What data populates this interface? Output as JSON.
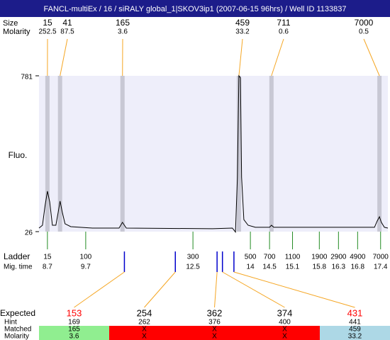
{
  "title": "FANCL-multiEx / 16 / siRALY global_1|SKOV3ip1 (2007-06-15 96hrs) / Well ID 1133837",
  "peak_header": {
    "size": "Size",
    "molarity": "Molarity"
  },
  "chart_data": {
    "type": "line",
    "y_label": "Fluo.",
    "xlim": [
      8.48,
      17.59
    ],
    "ylim": [
      26,
      781
    ],
    "yticks": [
      26,
      781
    ],
    "x": [
      8.48,
      8.57,
      8.64,
      8.7,
      8.76,
      8.83,
      8.92,
      8.98,
      9.03,
      9.09,
      9.16,
      9.31,
      9.87,
      10.57,
      10.66,
      10.76,
      13.01,
      13.53,
      13.61,
      13.66,
      13.7,
      13.74,
      13.77,
      13.83,
      13.94,
      14.13,
      14.5,
      14.55,
      14.61,
      16.72,
      17.24,
      17.31,
      17.37,
      17.42,
      17.5,
      17.59
    ],
    "series": [
      {
        "color": "#000000",
        "values": [
          43,
          57,
          153,
          222,
          170,
          57,
          57,
          119,
          174,
          119,
          64,
          50,
          43,
          43,
          71,
          43,
          40,
          43,
          24,
          290,
          781,
          771,
          290,
          84,
          57,
          47,
          47,
          57,
          47,
          47,
          47,
          77,
          98,
          71,
          47,
          43
        ]
      }
    ],
    "peaks": [
      {
        "size": 15,
        "molarity": 252.5,
        "time": 8.7
      },
      {
        "size": 41,
        "molarity": 87.5,
        "time": 9.03
      },
      {
        "size": 165,
        "molarity": 3.6,
        "time": 10.66
      },
      {
        "size": 459,
        "molarity": 33.2,
        "time": 13.7
      },
      {
        "size": 711,
        "molarity": 0.6,
        "time": 14.55
      },
      {
        "size": 7000,
        "molarity": 0.5,
        "time": 17.37
      }
    ],
    "ladder": {
      "label": "Ladder",
      "time_label": "Mig. time",
      "sizes": [
        15,
        100,
        300,
        500,
        700,
        1100,
        1900,
        2900,
        4900,
        7000
      ],
      "times": [
        8.7,
        9.7,
        12.5,
        14,
        14.5,
        15.1,
        15.8,
        16.3,
        16.8,
        17.4
      ]
    }
  },
  "expected": {
    "headers": {
      "expected": "Expected",
      "hint": "Hint",
      "matched": "Matched",
      "molarity": "Molarity"
    },
    "columns": [
      {
        "expected": 153,
        "hint": 169,
        "matched": 165,
        "molarity": 3.6,
        "marker_time": 10.71,
        "color": "#90ee90",
        "expected_color": "#ff0000"
      },
      {
        "expected": 254,
        "hint": 262,
        "matched": "X",
        "molarity": "X",
        "marker_time": 12.04,
        "color": "#ff0000",
        "expected_color": "#000000"
      },
      {
        "expected": 362,
        "hint": 376,
        "matched": "X",
        "molarity": "X",
        "marker_time": 13.13,
        "color": "#ff0000",
        "expected_color": "#000000"
      },
      {
        "expected": 374,
        "hint": 400,
        "matched": "X",
        "molarity": "X",
        "marker_time": 13.27,
        "color": "#ff0000",
        "expected_color": "#000000"
      },
      {
        "expected": 431,
        "hint": 441,
        "matched": 459,
        "molarity": 33.2,
        "marker_time": 13.57,
        "color": "#add8e6",
        "expected_color": "#ff0000"
      }
    ]
  }
}
